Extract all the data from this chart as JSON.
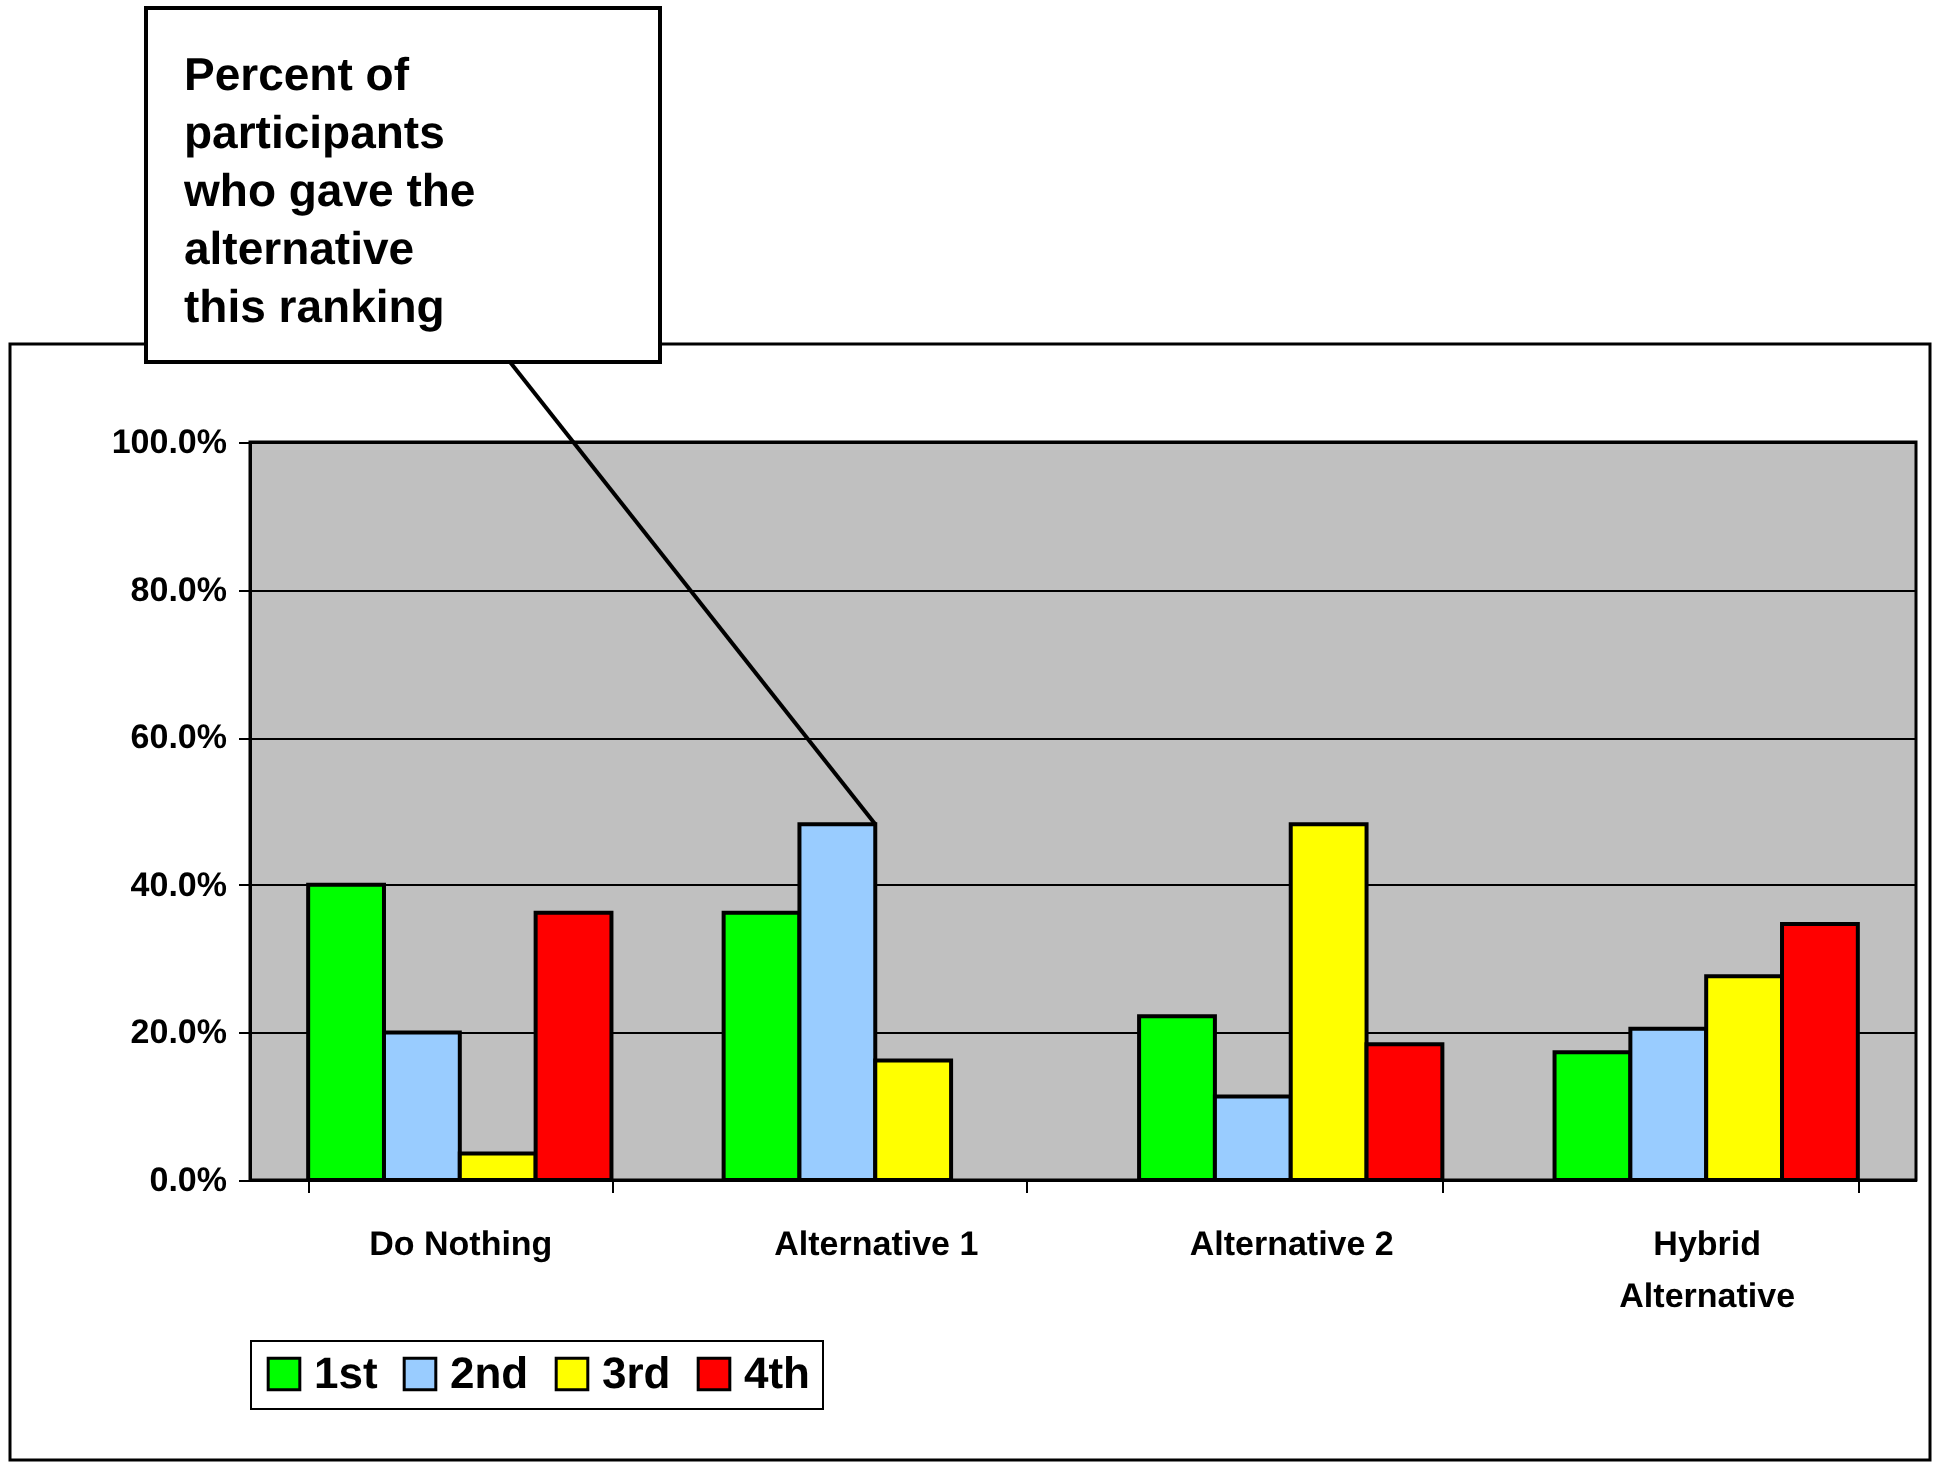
{
  "chart_data": {
    "type": "bar",
    "categories": [
      "Do Nothing",
      "Alternative 1",
      "Alternative 2",
      "Hybrid Alternative"
    ],
    "series": [
      {
        "name": "1st",
        "color": "#00ff00",
        "values": [
          40.0,
          36.2,
          22.2,
          17.3
        ]
      },
      {
        "name": "2nd",
        "color": "#99ccff",
        "values": [
          20.0,
          48.2,
          11.3,
          20.5
        ]
      },
      {
        "name": "3rd",
        "color": "#ffff00",
        "values": [
          3.6,
          16.2,
          48.2,
          27.6
        ]
      },
      {
        "name": "4th",
        "color": "#ff0000",
        "values": [
          36.2,
          null,
          18.4,
          34.7
        ]
      }
    ],
    "ylim": [
      0,
      100
    ],
    "yticks": [
      {
        "value": 0,
        "label": "0.0%"
      },
      {
        "value": 20,
        "label": "20.0%"
      },
      {
        "value": 40,
        "label": "40.0%"
      },
      {
        "value": 60,
        "label": "60.0%"
      },
      {
        "value": 80,
        "label": "80.0%"
      },
      {
        "value": 100,
        "label": "100.0%"
      }
    ],
    "grid": "y",
    "legend": "bottom",
    "annotations": [
      {
        "text": "Percent of participants who gave the alternative this ranking",
        "x": "Alternative 1",
        "y": 48.2
      }
    ]
  }
}
